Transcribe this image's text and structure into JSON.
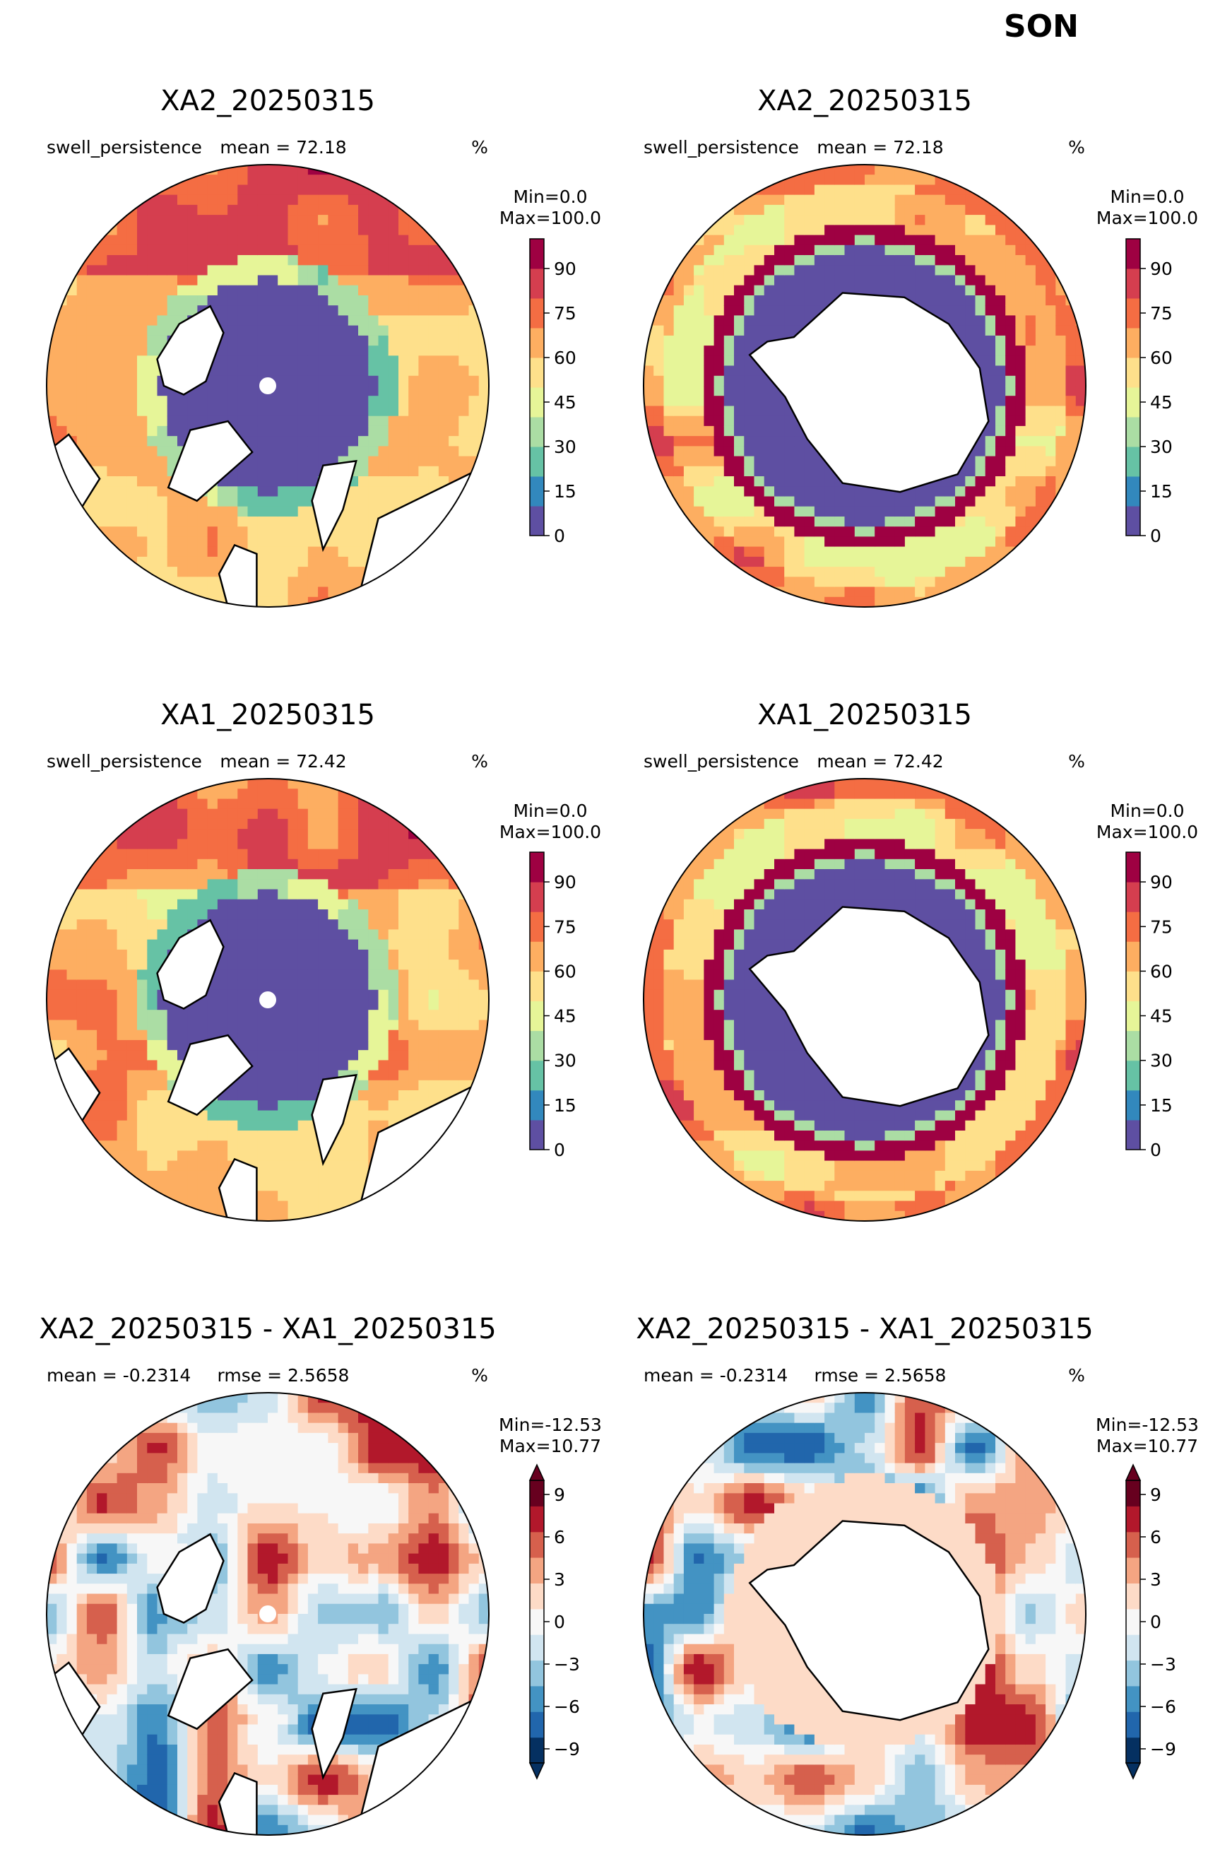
{
  "figure": {
    "title": "SON"
  },
  "colors": {
    "land": "#ffffff",
    "coast": "#000000",
    "spectral": [
      "#5e4fa2",
      "#3288bd",
      "#66c2a5",
      "#abdda4",
      "#e6f598",
      "#fee08b",
      "#fdae61",
      "#f46d43",
      "#d53e4f",
      "#9e0142"
    ],
    "rdbu": [
      "#053061",
      "#2166ac",
      "#4393c3",
      "#92c5de",
      "#d1e5f0",
      "#f7f7f7",
      "#fddbc7",
      "#f4a582",
      "#d6604d",
      "#b2182b",
      "#67001f"
    ]
  },
  "chart_data": [
    {
      "type": "heatmap",
      "projection": "north-polar-stereographic",
      "title": "XA2_20250315",
      "left_label": "swell_persistence",
      "center_label": "mean = 72.18",
      "right_label": "%",
      "stats": "Min=0.0\nMax=100.0",
      "colormap": "Spectral_r",
      "colorbar": {
        "ticks": [
          0,
          15,
          30,
          45,
          60,
          75,
          90
        ],
        "range": [
          0,
          100
        ],
        "extend": "neither"
      }
    },
    {
      "type": "heatmap",
      "projection": "south-polar-stereographic",
      "title": "XA2_20250315",
      "left_label": "swell_persistence",
      "center_label": "mean = 72.18",
      "right_label": "%",
      "stats": "Min=0.0\nMax=100.0",
      "colormap": "Spectral_r",
      "colorbar": {
        "ticks": [
          0,
          15,
          30,
          45,
          60,
          75,
          90
        ],
        "range": [
          0,
          100
        ],
        "extend": "neither"
      }
    },
    {
      "type": "heatmap",
      "projection": "north-polar-stereographic",
      "title": "XA1_20250315",
      "left_label": "swell_persistence",
      "center_label": "mean = 72.42",
      "right_label": "%",
      "stats": "Min=0.0\nMax=100.0",
      "colormap": "Spectral_r",
      "colorbar": {
        "ticks": [
          0,
          15,
          30,
          45,
          60,
          75,
          90
        ],
        "range": [
          0,
          100
        ],
        "extend": "neither"
      }
    },
    {
      "type": "heatmap",
      "projection": "south-polar-stereographic",
      "title": "XA1_20250315",
      "left_label": "swell_persistence",
      "center_label": "mean = 72.42",
      "right_label": "%",
      "stats": "Min=0.0\nMax=100.0",
      "colormap": "Spectral_r",
      "colorbar": {
        "ticks": [
          0,
          15,
          30,
          45,
          60,
          75,
          90
        ],
        "range": [
          0,
          100
        ],
        "extend": "neither"
      }
    },
    {
      "type": "heatmap",
      "projection": "north-polar-stereographic",
      "title": "XA2_20250315 - XA1_20250315",
      "left_label": "mean = -0.2314",
      "center_label": "rmse = 2.5658",
      "right_label": "%",
      "stats": "Min=-12.53\nMax=10.77",
      "colormap": "RdBu_r",
      "colorbar": {
        "ticks": [
          -9,
          -6,
          -3,
          0,
          3,
          6,
          9
        ],
        "range": [
          -10,
          10
        ],
        "extend": "both"
      }
    },
    {
      "type": "heatmap",
      "projection": "south-polar-stereographic",
      "title": "XA2_20250315 - XA1_20250315",
      "left_label": "mean = -0.2314",
      "center_label": "rmse = 2.5658",
      "right_label": "%",
      "stats": "Min=-12.53\nMax=10.77",
      "colormap": "RdBu_r",
      "colorbar": {
        "ticks": [
          -9,
          -6,
          -3,
          0,
          3,
          6,
          9
        ],
        "range": [
          -10,
          10
        ],
        "extend": "both"
      }
    }
  ]
}
